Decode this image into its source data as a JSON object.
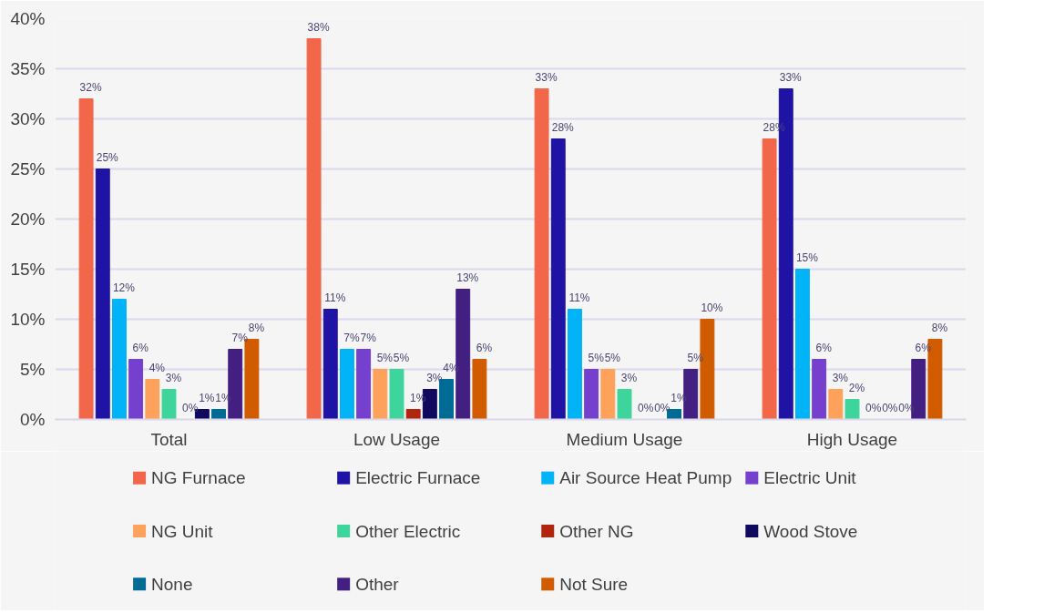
{
  "chart_data": {
    "type": "bar",
    "categories": [
      "Total",
      "Low Usage",
      "Medium Usage",
      "High Usage"
    ],
    "series": [
      {
        "name": "NG Furnace",
        "color": "#f2664a",
        "values": [
          32,
          38,
          33,
          28
        ],
        "value_labels": [
          "32%",
          "38%",
          "33%",
          "28%"
        ]
      },
      {
        "name": "Electric Furnace",
        "color": "#1f13a5",
        "values": [
          25,
          11,
          28,
          33
        ],
        "value_labels": [
          "25%",
          "11%",
          "28%",
          "33%"
        ]
      },
      {
        "name": "Air Source Heat Pump",
        "color": "#00b4f7",
        "values": [
          12,
          7,
          11,
          15
        ],
        "value_labels": [
          "12%",
          "7%",
          "11%",
          "15%"
        ]
      },
      {
        "name": "Electric Unit",
        "color": "#7640cf",
        "values": [
          6,
          7,
          5,
          6
        ],
        "value_labels": [
          "6%",
          "7%",
          "5%",
          "6%"
        ]
      },
      {
        "name": "NG Unit",
        "color": "#fda15b",
        "values": [
          4,
          5,
          5,
          3
        ],
        "value_labels": [
          "4%",
          "5%",
          "5%",
          "3%"
        ]
      },
      {
        "name": "Other Electric",
        "color": "#3ed59c",
        "values": [
          3,
          5,
          3,
          2
        ],
        "value_labels": [
          "3%",
          "5%",
          "3%",
          "2%"
        ]
      },
      {
        "name": "Other NG",
        "color": "#b1250f",
        "values": [
          0,
          1,
          0,
          0
        ],
        "value_labels": [
          "0%",
          "1%",
          "0%",
          "0%"
        ]
      },
      {
        "name": "Wood Stove",
        "color": "#100a5f",
        "values": [
          1,
          3,
          0,
          0
        ],
        "value_labels": [
          "1%",
          "3%",
          "0%",
          "0%"
        ]
      },
      {
        "name": "None",
        "color": "#006c96",
        "values": [
          1,
          4,
          1,
          0
        ],
        "value_labels": [
          "1%",
          "4%",
          "1%",
          "0%"
        ]
      },
      {
        "name": "Other",
        "color": "#431f82",
        "values": [
          7,
          13,
          5,
          6
        ],
        "value_labels": [
          "7%",
          "13%",
          "5%",
          "6%"
        ]
      },
      {
        "name": "Not Sure",
        "color": "#d15c00",
        "values": [
          8,
          6,
          10,
          8
        ],
        "value_labels": [
          "8%",
          "6%",
          "10%",
          "8%"
        ]
      }
    ],
    "ylim": [
      0,
      40
    ],
    "yticks": [
      {
        "value": 0,
        "label": "0%"
      },
      {
        "value": 5,
        "label": "5%"
      },
      {
        "value": 10,
        "label": "10%"
      },
      {
        "value": 15,
        "label": "15%"
      },
      {
        "value": 20,
        "label": "20%"
      },
      {
        "value": 25,
        "label": "25%"
      },
      {
        "value": 30,
        "label": "30%"
      },
      {
        "value": 35,
        "label": "35%"
      },
      {
        "value": 40,
        "label": "40%"
      }
    ],
    "grid": "y",
    "legend": "bottom"
  }
}
